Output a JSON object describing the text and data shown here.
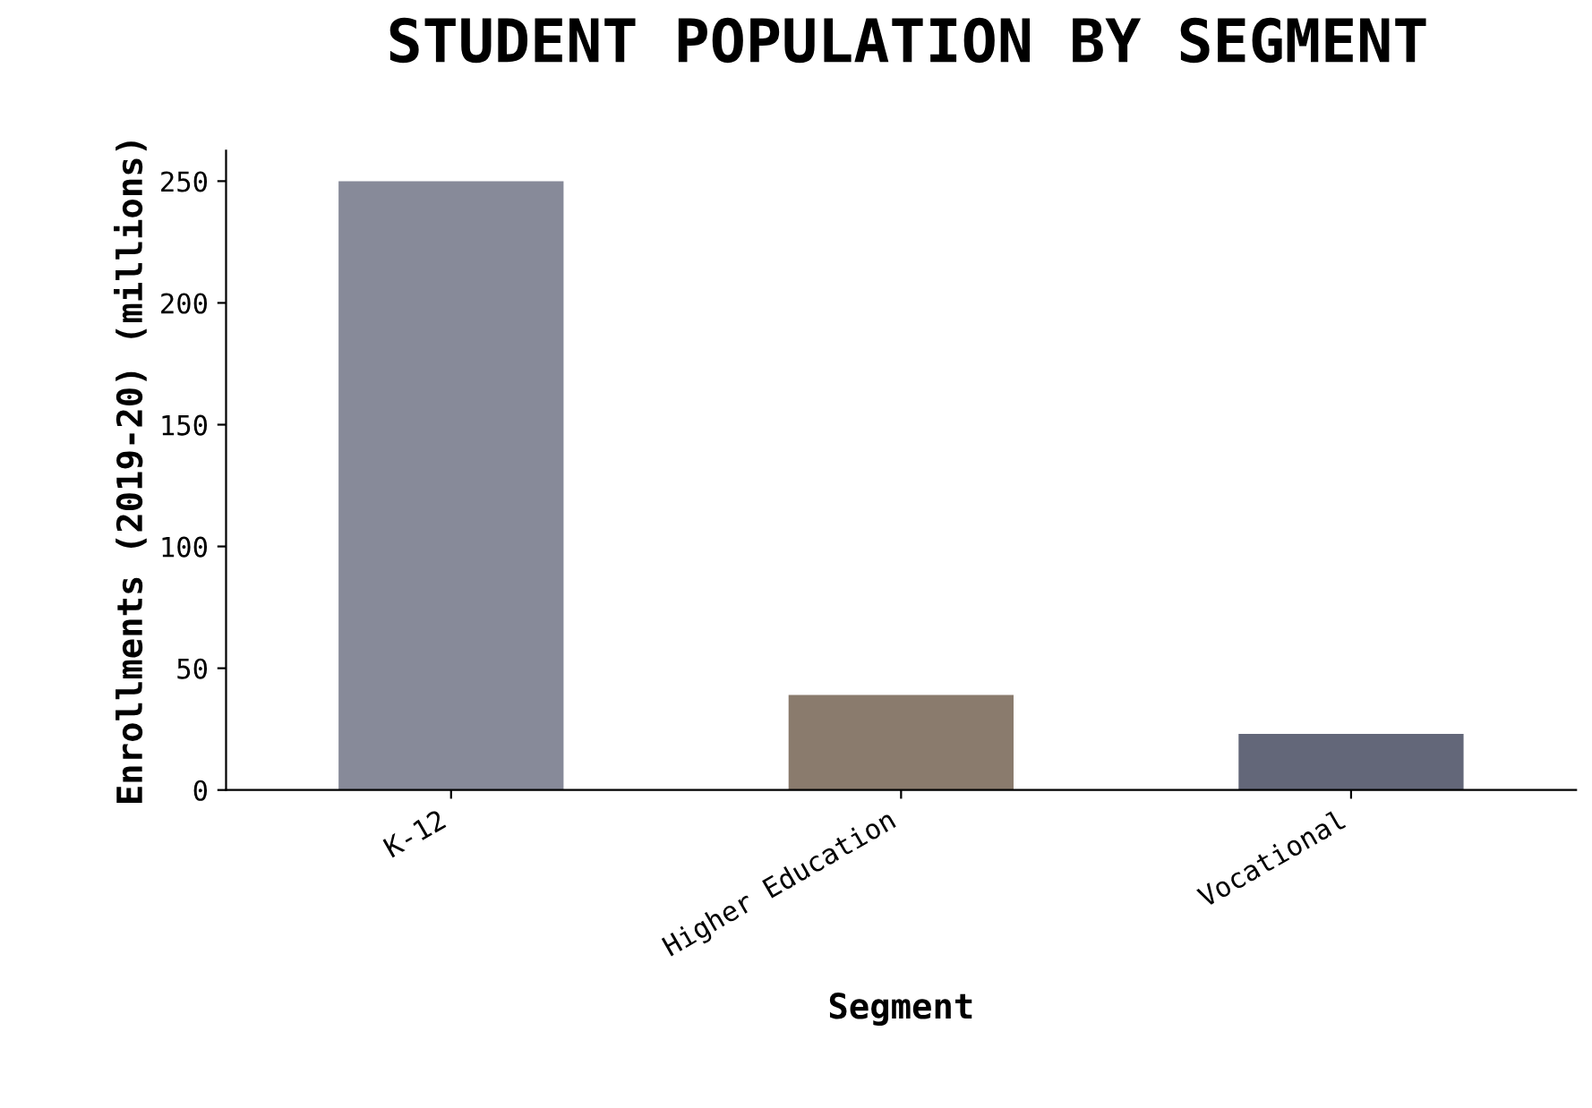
{
  "chart_data": {
    "type": "bar",
    "title": "STUDENT POPULATION BY SEGMENT",
    "xlabel": "Segment",
    "ylabel": "Enrollments (2019-20) (millions)",
    "categories": [
      "K-12",
      "Higher Education",
      "Vocational"
    ],
    "values": [
      250,
      39,
      23
    ],
    "colors": [
      "#878a99",
      "#8a7b6d",
      "#636779"
    ],
    "ylim": [
      0,
      262.5
    ],
    "yticks": [
      0,
      50,
      100,
      150,
      200,
      250
    ],
    "grid": false,
    "legend": false
  }
}
